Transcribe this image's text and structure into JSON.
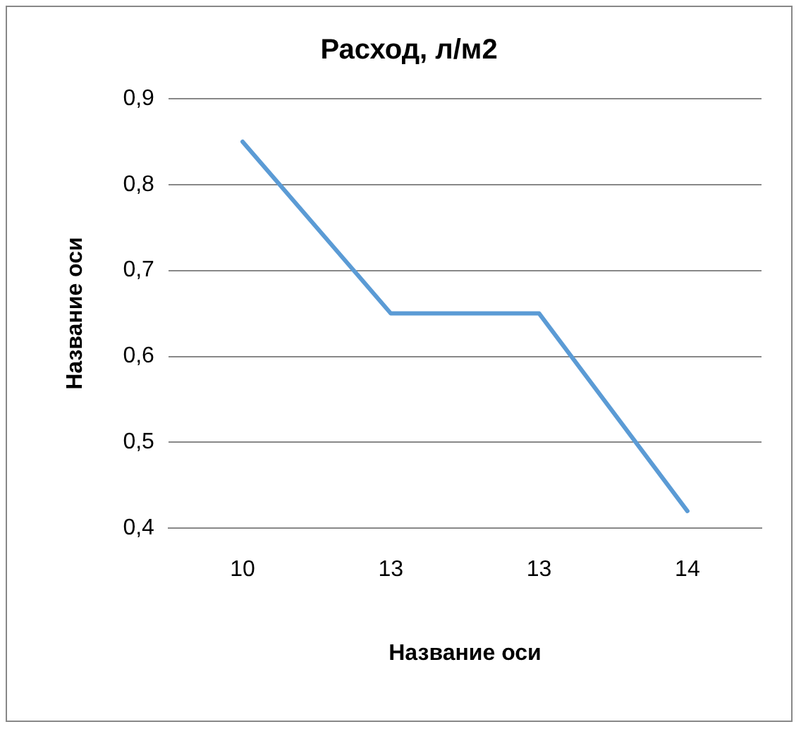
{
  "chart_data": {
    "type": "line",
    "title": "Расход, л/м2",
    "xlabel": "Название оси",
    "ylabel": "Название оси",
    "categories": [
      "10",
      "13",
      "13",
      "14"
    ],
    "series": [
      {
        "color": "#5b9bd5",
        "values": [
          0.85,
          0.65,
          0.65,
          0.42
        ]
      }
    ],
    "ylim": [
      0.4,
      0.9
    ],
    "yticks": [
      {
        "value": 0.4,
        "label": "0,4"
      },
      {
        "value": 0.5,
        "label": "0,5"
      },
      {
        "value": 0.6,
        "label": "0,6"
      },
      {
        "value": 0.7,
        "label": "0,7"
      },
      {
        "value": 0.8,
        "label": "0,8"
      },
      {
        "value": 0.9,
        "label": "0,9"
      }
    ],
    "grid": "y",
    "legend": false,
    "marker": "none",
    "line_style": "solid"
  }
}
